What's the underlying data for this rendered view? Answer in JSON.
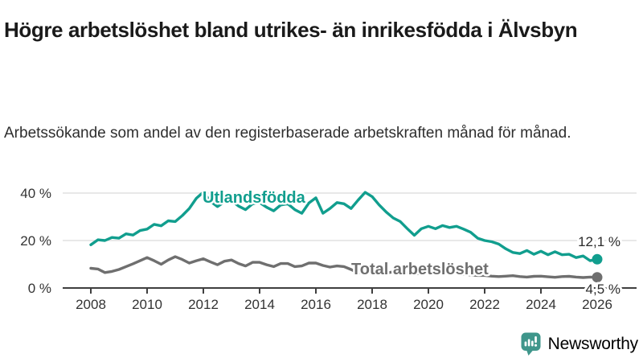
{
  "header": {
    "title": "Högre arbetslöshet bland utrikes- än inrikesfödda i Älvsbyn",
    "subtitle": "Arbetssökande som andel av den registerbaserade arbetskraften månad för månad."
  },
  "colors": {
    "foreign_born_line": "#119e8e",
    "total_line": "#6f6f6f",
    "gridline": "#d9d9d9",
    "axis": "#3f3f3f",
    "brand_teal": "#3f968b"
  },
  "chart_data": {
    "type": "line",
    "title": "Högre arbetslöshet bland utrikes- än inrikesfödda i Älvsbyn",
    "subtitle": "Arbetssökande som andel av den registerbaserade arbetskraften månad för månad.",
    "y_unit": "%",
    "ylim": [
      0,
      42
    ],
    "grid": "horizontal",
    "x_start": 2008,
    "points_per_year": 4,
    "y_ticks": [
      {
        "label": "40 %",
        "value": 40
      },
      {
        "label": "20 %",
        "value": 20
      },
      {
        "label": "0 %",
        "value": 0
      }
    ],
    "x_ticks": [
      {
        "label": "2008",
        "value": 2008
      },
      {
        "label": "2010",
        "value": 2010
      },
      {
        "label": "2012",
        "value": 2012
      },
      {
        "label": "2014",
        "value": 2014
      },
      {
        "label": "2016",
        "value": 2016
      },
      {
        "label": "2018",
        "value": 2018
      },
      {
        "label": "2020",
        "value": 2020
      },
      {
        "label": "2022",
        "value": 2022
      },
      {
        "label": "2024",
        "value": 2024
      },
      {
        "label": "2026",
        "value": 2026
      }
    ],
    "series": [
      {
        "name": "Utlandsfödda",
        "color": "#119e8e",
        "end_value": 12.1,
        "end_label": "12,1 %",
        "values": [
          18.2,
          20.3,
          20.0,
          21.3,
          21.0,
          22.8,
          22.3,
          24.2,
          24.8,
          26.8,
          26.2,
          28.3,
          28.0,
          30.5,
          33.5,
          37.8,
          40.4,
          36.5,
          34.3,
          36.3,
          36.8,
          34.5,
          33.0,
          35.5,
          36.0,
          34.0,
          32.5,
          35.0,
          35.5,
          33.0,
          31.5,
          35.8,
          38.0,
          31.5,
          33.5,
          36.0,
          35.5,
          33.5,
          37.0,
          40.3,
          38.5,
          35.0,
          32.0,
          29.5,
          28.0,
          25.0,
          22.2,
          25.0,
          26.0,
          25.0,
          26.3,
          25.5,
          26.0,
          24.8,
          23.5,
          21.0,
          20.0,
          19.5,
          18.5,
          16.5,
          15.0,
          14.5,
          15.8,
          14.2,
          15.5,
          14.0,
          15.3,
          14.0,
          14.2,
          12.8,
          13.5,
          11.5,
          12.1
        ]
      },
      {
        "name": "Total arbetslöshet",
        "color": "#6f6f6f",
        "end_value": 4.5,
        "end_label": "4,5 %",
        "values": [
          8.3,
          8.0,
          6.5,
          7.0,
          7.8,
          9.0,
          10.2,
          11.5,
          12.8,
          11.5,
          10.0,
          11.8,
          13.2,
          12.0,
          10.5,
          11.5,
          12.3,
          11.0,
          9.8,
          11.3,
          11.8,
          10.3,
          9.3,
          10.8,
          10.8,
          9.8,
          9.0,
          10.3,
          10.3,
          9.0,
          9.3,
          10.5,
          10.5,
          9.5,
          8.8,
          9.3,
          9.0,
          7.8,
          6.3,
          7.5,
          7.8,
          7.0,
          6.3,
          6.8,
          6.8,
          6.3,
          5.8,
          6.3,
          6.5,
          7.0,
          6.5,
          6.3,
          6.3,
          5.8,
          5.5,
          5.3,
          5.3,
          5.0,
          4.8,
          5.0,
          5.2,
          4.8,
          4.6,
          4.9,
          5.0,
          4.7,
          4.5,
          4.8,
          4.9,
          4.6,
          4.4,
          4.6,
          4.5
        ]
      }
    ]
  },
  "footer": {
    "brand": "Newsworthy"
  }
}
